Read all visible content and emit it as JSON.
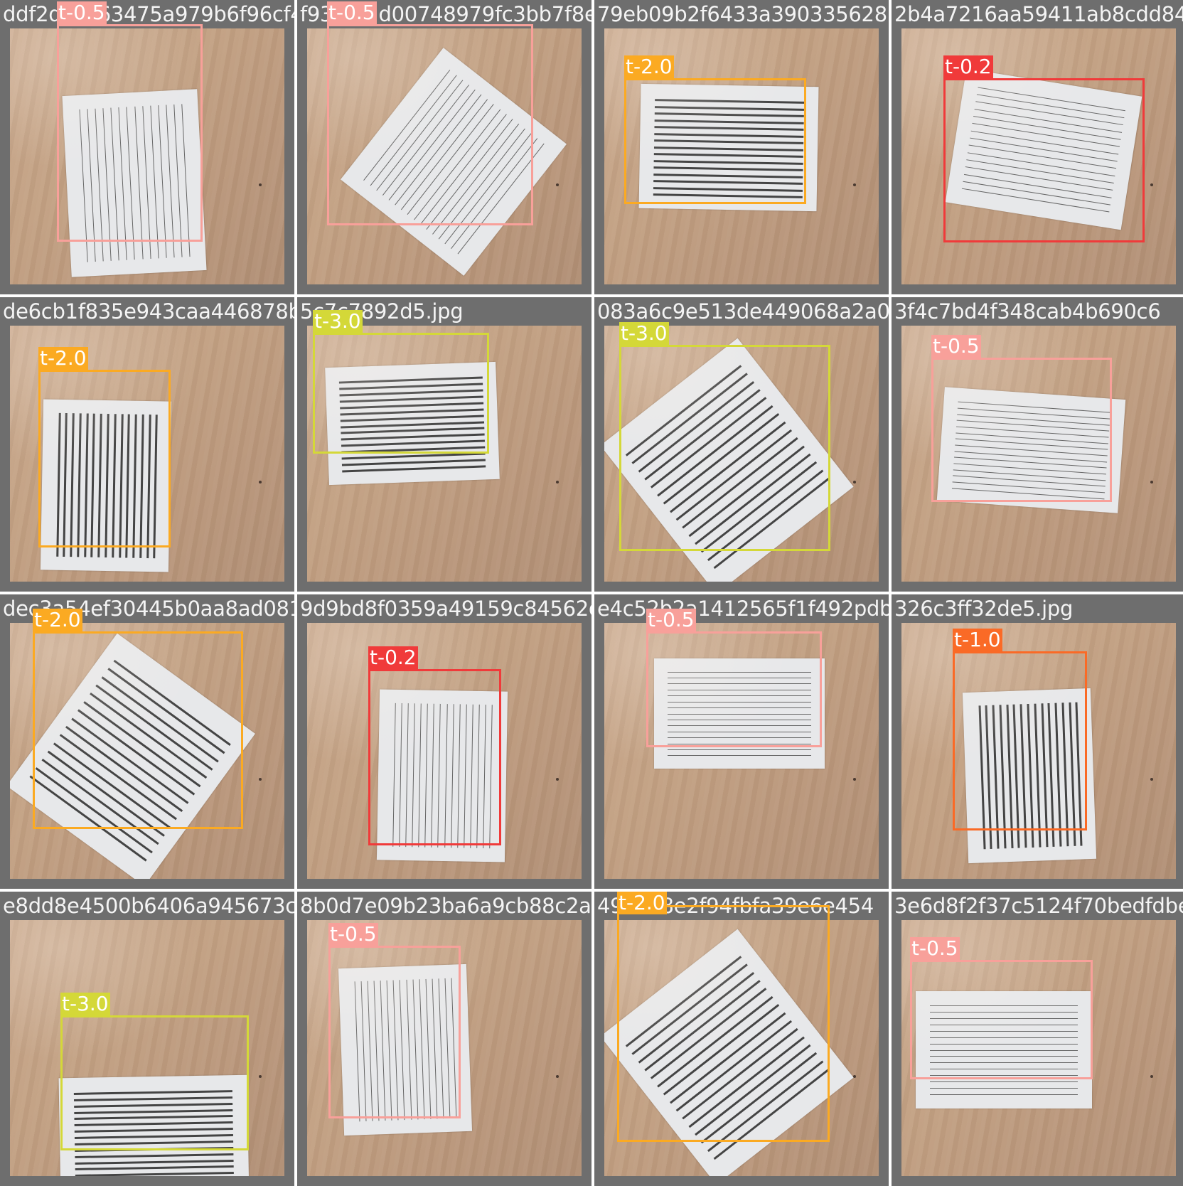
{
  "colors": {
    "t-0.2": "#f03a3a",
    "t-0.5": "#f8a09a",
    "t-1.0": "#fa6a26",
    "t-2.0": "#fbaa22",
    "t-3.0": "#d4d838"
  },
  "tiles": [
    {
      "file": "ddf2dc5e63475a979b6f96cf4…",
      "papers": [
        {
          "angle": -3,
          "lines": 14,
          "dir": "v",
          "weight": "thin",
          "label": "t-0.5"
        }
      ]
    },
    {
      "file": "f93f5b2d00748979fc3bb7f8e29d9ea7.jpg",
      "papers": [
        {
          "angle": 38,
          "lines": 16,
          "dir": "v",
          "weight": "thin",
          "label": "t-0.5"
        }
      ]
    },
    {
      "file": "79eb09b2f6433a3903356281c93dfacab.jpg",
      "papers": [
        {
          "angle": 1,
          "lines": 15,
          "dir": "h",
          "weight": "thick",
          "label": "t-2.0"
        }
      ]
    },
    {
      "file": "2b4a7216aa59411ab8cdd849",
      "papers": [
        {
          "angle": 9,
          "lines": 15,
          "dir": "h",
          "weight": "thin",
          "label": "t-0.2"
        }
      ]
    },
    {
      "file": "de6cb1f835e943caa446878bc6fe6f923d5fa44a1ebabebd0",
      "papers": [
        {
          "angle": 1,
          "lines": 15,
          "dir": "v",
          "weight": "thick",
          "label": "t-2.0"
        }
      ]
    },
    {
      "file": "5c7c7892d5.jpg",
      "papers": [
        {
          "angle": -2,
          "lines": 15,
          "dir": "h",
          "weight": "thick",
          "label": "t-3.0"
        }
      ]
    },
    {
      "file": "083a6c9e513de449068a2a025b140e7d1795.jpg",
      "papers": [
        {
          "angle": -38,
          "lines": 15,
          "dir": "h",
          "weight": "thick",
          "label": "t-3.0"
        }
      ]
    },
    {
      "file": "3f4c7bd4f348cab4b690c6",
      "papers": [
        {
          "angle": 4,
          "lines": 15,
          "dir": "h",
          "weight": "thin",
          "label": "t-0.5"
        }
      ]
    },
    {
      "file": "dec3a54ef30445b0aa8ad0819b0a1f4f3b9e.jpg",
      "papers": [
        {
          "angle": 36,
          "lines": 15,
          "dir": "h",
          "weight": "thick",
          "label": "t-2.0"
        }
      ]
    },
    {
      "file": "9d9bd8f0359a49159c84562d15247e37b67fb.jpg",
      "papers": [
        {
          "angle": 1,
          "lines": 16,
          "dir": "v",
          "weight": "thin",
          "label": "t-0.2"
        }
      ]
    },
    {
      "file": "e4c52b2a1412565f1f492pdb45eb89d5fc8d",
      "papers": [
        {
          "angle": 0,
          "lines": 15,
          "dir": "h",
          "weight": "thin",
          "label": "t-0.5"
        }
      ]
    },
    {
      "file": "326c3ff32de5.jpg",
      "papers": [
        {
          "angle": -2,
          "lines": 15,
          "dir": "v",
          "weight": "thick",
          "label": "t-1.0"
        }
      ]
    },
    {
      "file": "e8dd8e4500b6406a945673c848d7c83e35fd4",
      "papers": [
        {
          "angle": -1,
          "lines": 16,
          "dir": "h",
          "weight": "thick",
          "label": "t-3.0"
        }
      ]
    },
    {
      "file": "8b0d7e09b23ba6a9cb88c2a.jpg",
      "papers": [
        {
          "angle": -2,
          "lines": 16,
          "dir": "v",
          "weight": "thin",
          "label": "t-0.5"
        }
      ]
    },
    {
      "file": "49e8e8e2f94fbfa39e6e454",
      "papers": [
        {
          "angle": -38,
          "lines": 15,
          "dir": "h",
          "weight": "thick",
          "label": "t-2.0"
        }
      ]
    },
    {
      "file": "3e6d8f2f37c5124f70bedfdbe9",
      "papers": [
        {
          "angle": 0,
          "lines": 15,
          "dir": "h",
          "weight": "thin",
          "label": "t-0.5"
        }
      ]
    }
  ]
}
